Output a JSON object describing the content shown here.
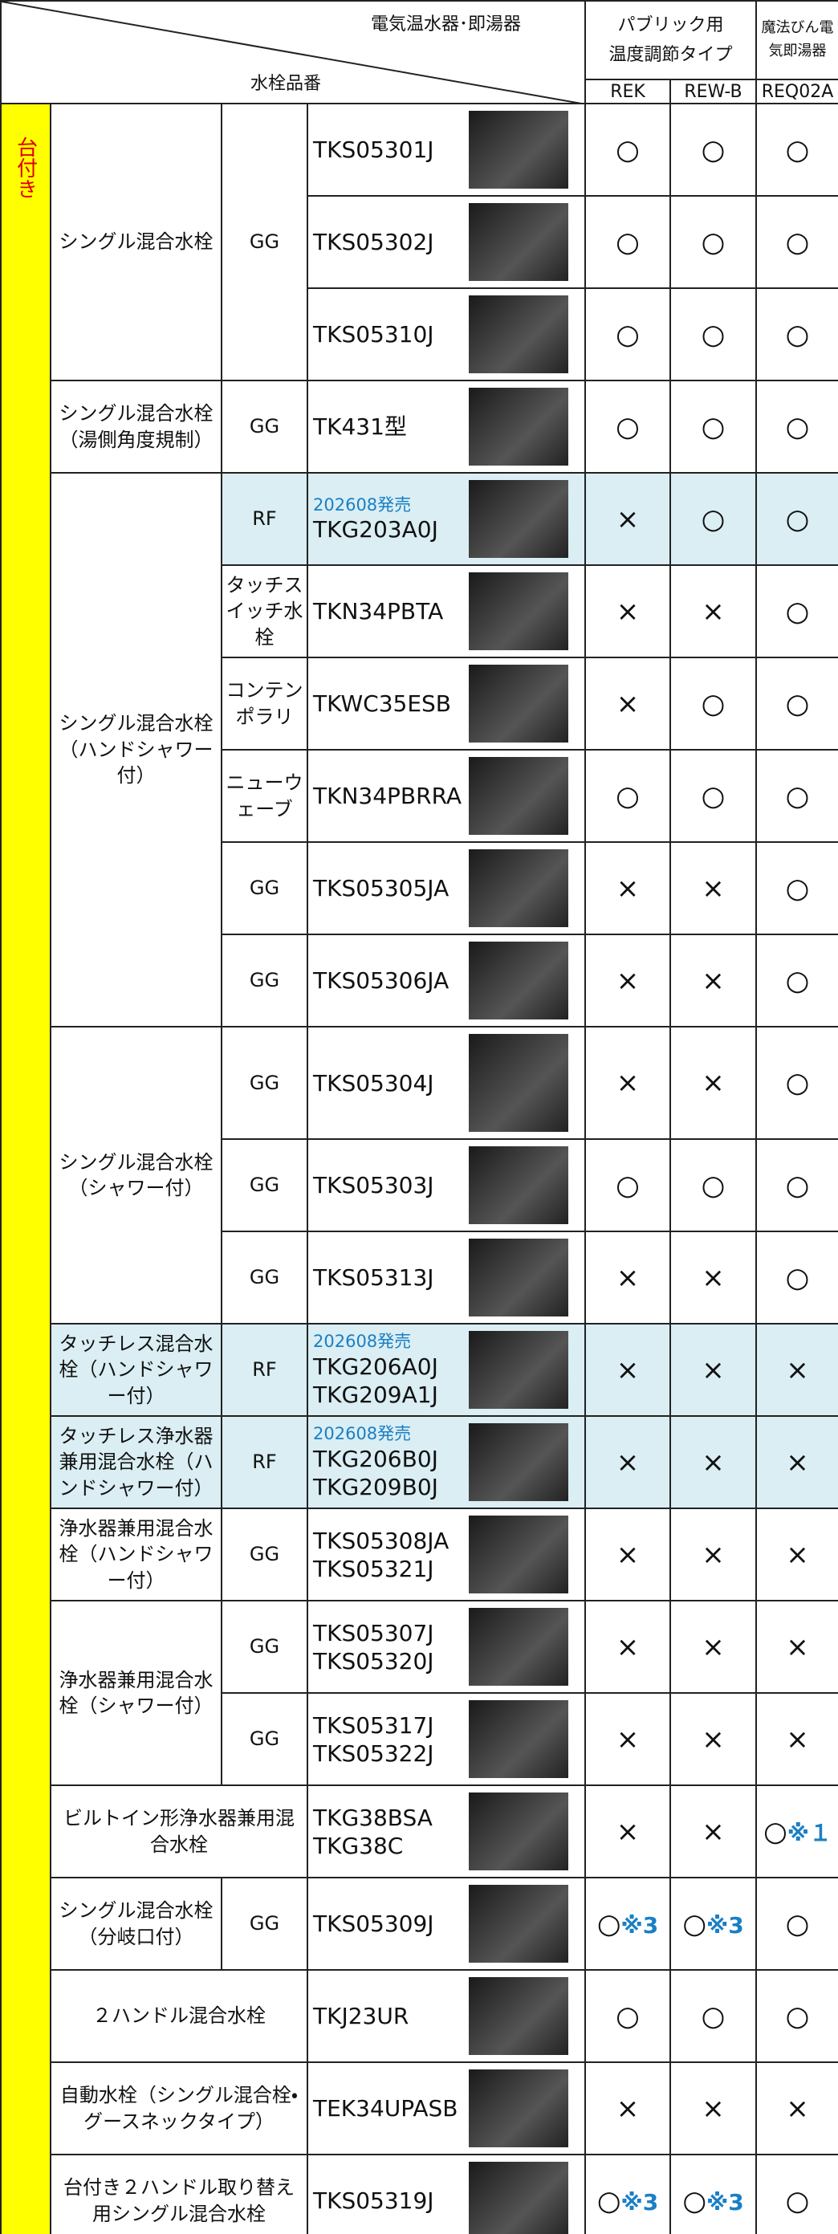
{
  "header": {
    "heater_label": "電気温水器･即湯器",
    "faucet_label": "水栓品番",
    "group_label_lines": [
      "パブリック用",
      "温度調節タイプ"
    ],
    "extra_label": "魔法びん電気即湯器",
    "columns": [
      "REK",
      "REW-B",
      "REQ02A"
    ]
  },
  "side_label": "台付き",
  "groups": [
    {
      "category": "シングル混合水栓",
      "sub": "GG",
      "rows": [
        {
          "models": [
            "TKS05301J"
          ],
          "marks": [
            "○",
            "○",
            "○"
          ]
        },
        {
          "models": [
            "TKS05302J"
          ],
          "marks": [
            "○",
            "○",
            "○"
          ]
        },
        {
          "models": [
            "TKS05310J"
          ],
          "marks": [
            "○",
            "○",
            "○"
          ]
        }
      ]
    },
    {
      "category": "シングル混合水栓（湯側角度規制）",
      "sub": "GG",
      "rows": [
        {
          "models": [
            "TK431型"
          ],
          "marks": [
            "○",
            "○",
            "○"
          ]
        }
      ]
    },
    {
      "category": "シングル混合水栓（ハンドシャワー付）",
      "rows": [
        {
          "sub": "RF",
          "release": "202608発売",
          "models": [
            "TKG203A0J"
          ],
          "marks": [
            "×",
            "○",
            "○"
          ],
          "highlight": true
        },
        {
          "sub": "タッチスイッチ水栓",
          "models": [
            "TKN34PBTA"
          ],
          "marks": [
            "×",
            "×",
            "○"
          ]
        },
        {
          "sub": "コンテンポラリ",
          "models": [
            "TKWC35ESB"
          ],
          "marks": [
            "×",
            "○",
            "○"
          ]
        },
        {
          "sub": "ニューウェーブ",
          "models": [
            "TKN34PBRRA"
          ],
          "marks": [
            "○",
            "○",
            "○"
          ]
        },
        {
          "sub": "GG",
          "models": [
            "TKS05305JA"
          ],
          "marks": [
            "×",
            "×",
            "○"
          ]
        },
        {
          "sub": "GG",
          "models": [
            "TKS05306JA"
          ],
          "marks": [
            "×",
            "×",
            "○"
          ]
        }
      ]
    },
    {
      "category": "シングル混合水栓（シャワー付）",
      "rows": [
        {
          "sub": "GG",
          "models": [
            "TKS05304J"
          ],
          "marks": [
            "×",
            "×",
            "○"
          ]
        },
        {
          "sub": "GG",
          "models": [
            "TKS05303J"
          ],
          "marks": [
            "○",
            "○",
            "○"
          ]
        },
        {
          "sub": "GG",
          "models": [
            "TKS05313J"
          ],
          "marks": [
            "×",
            "×",
            "○"
          ]
        }
      ]
    },
    {
      "category": "タッチレス混合水栓（ハンドシャワー付）",
      "highlight": true,
      "rows": [
        {
          "sub": "RF",
          "release": "202608発売",
          "models": [
            "TKG206A0J",
            "TKG209A1J"
          ],
          "marks": [
            "×",
            "×",
            "×"
          ],
          "highlight": true
        }
      ]
    },
    {
      "category": "タッチレス浄水器兼用混合水栓（ハンドシャワー付）",
      "highlight": true,
      "rows": [
        {
          "sub": "RF",
          "release": "202608発売",
          "models": [
            "TKG206B0J",
            "TKG209B0J"
          ],
          "marks": [
            "×",
            "×",
            "×"
          ],
          "highlight": true
        }
      ]
    },
    {
      "category": "浄水器兼用混合水栓（ハンドシャワー付）",
      "rows": [
        {
          "sub": "GG",
          "models": [
            "TKS05308JA",
            "TKS05321J"
          ],
          "marks": [
            "×",
            "×",
            "×"
          ]
        }
      ]
    },
    {
      "category": "浄水器兼用混合水栓（シャワー付）",
      "rows": [
        {
          "sub": "GG",
          "models": [
            "TKS05307J",
            "TKS05320J"
          ],
          "marks": [
            "×",
            "×",
            "×"
          ]
        },
        {
          "sub": "GG",
          "models": [
            "TKS05317J",
            "TKS05322J"
          ],
          "marks": [
            "×",
            "×",
            "×"
          ]
        }
      ]
    },
    {
      "category": "ビルトイン形浄水器兼用混合水栓",
      "rows": [
        {
          "models": [
            "TKG38BSA",
            "TKG38C"
          ],
          "marks": [
            "×",
            "×",
            {
              "mark": "○",
              "note": "※１"
            }
          ]
        }
      ]
    },
    {
      "category": "シングル混合水栓（分岐口付）",
      "sub": "GG",
      "rows": [
        {
          "models": [
            "TKS05309J"
          ],
          "marks": [
            {
              "mark": "○",
              "note": "※3"
            },
            {
              "mark": "○",
              "note": "※3"
            },
            "○"
          ]
        }
      ]
    },
    {
      "category": "２ハンドル混合水栓",
      "rows": [
        {
          "models": [
            "TKJ23UR"
          ],
          "marks": [
            "○",
            "○",
            "○"
          ]
        }
      ]
    },
    {
      "category": "自動水栓（シングル混合栓・グースネックタイプ）",
      "rows": [
        {
          "models": [
            "TEK34UPASB"
          ],
          "marks": [
            "×",
            "×",
            "×"
          ]
        }
      ]
    },
    {
      "category": "台付き２ハンドル取り替え用シングル混合水栓",
      "rows": [
        {
          "models": [
            "TKS05319J"
          ],
          "marks": [
            {
              "mark": "○",
              "note": "※3"
            },
            {
              "mark": "○",
              "note": "※3"
            },
            "○"
          ]
        }
      ]
    }
  ]
}
